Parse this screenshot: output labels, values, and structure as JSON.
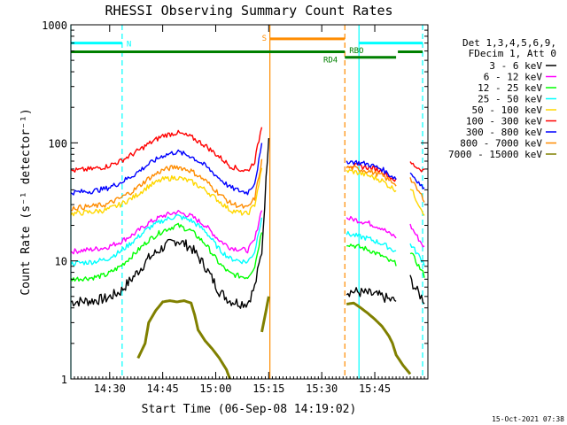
{
  "chart_data": {
    "type": "line",
    "title": "RHESSI Observing Summary Count Rates",
    "xlabel": "Start Time (06-Sep-08 14:19:02)",
    "ylabel": "Count Rate (s⁻¹ detector⁻¹)",
    "y_scale": "log",
    "ylim": [
      1,
      1000
    ],
    "xlim_minutes_after_start": [
      0,
      101
    ],
    "x_ticks": [
      {
        "label": "14:30",
        "minutes": 10.97
      },
      {
        "label": "14:45",
        "minutes": 25.97
      },
      {
        "label": "15:00",
        "minutes": 40.97
      },
      {
        "label": "15:15",
        "minutes": 55.97
      },
      {
        "label": "15:30",
        "minutes": 70.97
      },
      {
        "label": "15:45",
        "minutes": 85.97
      }
    ],
    "y_ticks": [
      {
        "label": "1",
        "value": 1
      },
      {
        "label": "10",
        "value": 10
      },
      {
        "label": "100",
        "value": 100
      },
      {
        "label": "1000",
        "value": 1000
      }
    ],
    "legend": {
      "position": "right",
      "header": [
        "Det 1,3,4,5,6,9,",
        "FDecim 1, Att 0"
      ]
    },
    "series": [
      {
        "name": "3 - 6 keV",
        "color": "#000000",
        "x": [
          0,
          6,
          10,
          14,
          18,
          22,
          26,
          30,
          34,
          38,
          42,
          45,
          48,
          50,
          52,
          54,
          56,
          64,
          72,
          76,
          78,
          80,
          84,
          88,
          90,
          92,
          94,
          96,
          98,
          100
        ],
        "y": [
          4.5,
          4.6,
          4.8,
          5.5,
          7.5,
          10.5,
          13,
          15,
          13,
          9,
          5.5,
          4.6,
          4.4,
          4.4,
          6,
          12,
          120,
          null,
          null,
          null,
          5.5,
          5.5,
          5.3,
          5,
          4.7,
          4.6,
          null,
          7,
          5.5,
          4.6
        ]
      },
      {
        "name": "6 - 12 keV",
        "color": "#ff00ff",
        "x": [
          0,
          6,
          10,
          14,
          18,
          22,
          26,
          30,
          34,
          38,
          42,
          45,
          48,
          50,
          52,
          54,
          56,
          64,
          72,
          76,
          78,
          80,
          84,
          88,
          90,
          92,
          94,
          96,
          98,
          100
        ],
        "y": [
          12,
          12.5,
          13,
          14.5,
          17,
          21,
          24,
          26,
          24,
          20,
          15,
          13,
          12.5,
          12.3,
          15,
          28,
          null,
          null,
          null,
          null,
          23,
          22.5,
          21,
          19,
          17,
          16,
          null,
          20,
          16,
          13
        ]
      },
      {
        "name": "12 - 25 keV",
        "color": "#00ff00",
        "x": [
          0,
          6,
          10,
          14,
          18,
          22,
          26,
          30,
          34,
          38,
          42,
          45,
          48,
          50,
          52,
          54,
          56,
          64,
          72,
          76,
          78,
          80,
          84,
          88,
          90,
          92,
          94,
          96,
          98,
          100
        ],
        "y": [
          7,
          7.2,
          7.6,
          9,
          11.5,
          15,
          18,
          20,
          18,
          14,
          9.5,
          7.8,
          7.4,
          7.3,
          9,
          18,
          null,
          null,
          null,
          null,
          14,
          13.5,
          12.5,
          11,
          10,
          9.5,
          null,
          12,
          9.5,
          7.5
        ]
      },
      {
        "name": "25 - 50 keV",
        "color": "#00ffff",
        "x": [
          0,
          6,
          10,
          14,
          18,
          22,
          26,
          30,
          34,
          38,
          42,
          45,
          48,
          50,
          52,
          54,
          56,
          64,
          72,
          76,
          78,
          80,
          84,
          88,
          90,
          92,
          94,
          96,
          98,
          100
        ],
        "y": [
          9.5,
          9.8,
          10.3,
          12,
          15,
          19,
          22,
          24,
          22,
          18,
          12.5,
          10.5,
          10,
          9.8,
          12,
          24,
          null,
          null,
          null,
          null,
          17,
          16.5,
          15.5,
          14,
          13,
          12,
          null,
          14,
          11.5,
          9.5
        ]
      },
      {
        "name": "50 - 100 keV",
        "color": "#ffd700",
        "x": [
          0,
          6,
          10,
          14,
          18,
          22,
          26,
          30,
          34,
          38,
          42,
          45,
          48,
          50,
          52,
          54,
          56,
          64,
          72,
          76,
          78,
          80,
          84,
          88,
          90,
          92,
          94,
          96,
          98,
          100
        ],
        "y": [
          25,
          26,
          27,
          30,
          35,
          43,
          49,
          51,
          47,
          40,
          32,
          27,
          25.5,
          25,
          30,
          60,
          null,
          null,
          null,
          null,
          58,
          57,
          53,
          48,
          43,
          40,
          null,
          42,
          32,
          25
        ]
      },
      {
        "name": "100 - 300 keV",
        "color": "#ff0000",
        "x": [
          0,
          6,
          10,
          14,
          18,
          22,
          26,
          30,
          34,
          38,
          42,
          45,
          48,
          50,
          52,
          54,
          56,
          64,
          72,
          76,
          78,
          80,
          84,
          88,
          90,
          92,
          94,
          96,
          98,
          100
        ],
        "y": [
          58,
          60,
          63,
          70,
          82,
          98,
          115,
          122,
          112,
          95,
          76,
          64,
          59,
          58,
          70,
          140,
          null,
          null,
          null,
          null,
          65,
          64,
          62,
          58,
          52,
          48,
          null,
          68,
          62,
          58
        ]
      },
      {
        "name": "300 - 800 keV",
        "color": "#0000ff",
        "x": [
          0,
          6,
          10,
          14,
          18,
          22,
          26,
          30,
          34,
          38,
          42,
          45,
          48,
          50,
          52,
          54,
          56,
          64,
          72,
          76,
          78,
          80,
          84,
          88,
          90,
          92,
          94,
          96,
          98,
          100
        ],
        "y": [
          38,
          39,
          41,
          46,
          54,
          66,
          78,
          84,
          77,
          64,
          50,
          42,
          39,
          38,
          46,
          95,
          null,
          null,
          null,
          null,
          70,
          69,
          66,
          60,
          54,
          50,
          null,
          56,
          48,
          40
        ]
      },
      {
        "name": "800 - 7000 keV",
        "color": "#ff8c00",
        "x": [
          0,
          6,
          10,
          14,
          18,
          22,
          26,
          30,
          34,
          38,
          42,
          45,
          48,
          50,
          52,
          54,
          56,
          64,
          72,
          76,
          78,
          80,
          84,
          88,
          90,
          92,
          94,
          96,
          98,
          100
        ],
        "y": [
          28,
          29,
          30,
          34,
          40,
          50,
          59,
          63,
          58,
          48,
          37,
          31,
          29,
          28,
          34,
          70,
          null,
          null,
          null,
          null,
          62,
          61,
          58,
          53,
          48,
          45,
          null,
          50,
          40,
          33
        ]
      },
      {
        "name": "7000 - 15000 keV",
        "color": "#808000",
        "x": [
          19,
          21,
          22,
          24,
          26,
          28,
          30,
          32,
          34,
          35,
          36,
          38,
          40,
          42,
          44,
          45,
          46,
          48,
          52,
          54,
          56,
          64,
          72,
          76,
          78,
          80,
          82,
          84,
          86,
          88,
          90,
          91,
          92,
          94,
          96,
          98,
          100
        ],
        "y": [
          1.5,
          2,
          3,
          3.8,
          4.5,
          4.6,
          4.5,
          4.6,
          4.4,
          3.5,
          2.6,
          2.1,
          1.8,
          1.5,
          1.2,
          1,
          null,
          null,
          null,
          2.5,
          5,
          null,
          null,
          null,
          4.3,
          4.4,
          4,
          3.6,
          3.2,
          2.8,
          2.3,
          2,
          1.6,
          1.3,
          1.1,
          null,
          null
        ]
      }
    ],
    "annotations": [
      {
        "label": "N",
        "color": "#00ffff",
        "type": "interval",
        "start_minutes": 0,
        "end_minutes": 14.5,
        "y_value": 700
      },
      {
        "label": "S",
        "color": "#ff8c00",
        "type": "interval",
        "start_minutes": 56.3,
        "end_minutes": 77.5,
        "y_value": 760
      },
      {
        "label": "RD4",
        "color": "#008000",
        "type": "interval",
        "start_minutes": 0,
        "end_minutes": 77.5,
        "y_value": 590
      },
      {
        "label": "RBO",
        "color": "#008000",
        "type": "interval",
        "start_minutes": 77.5,
        "end_minutes": 92,
        "y_value": 530
      },
      {
        "label": "",
        "color": "#008000",
        "type": "interval",
        "start_minutes": 92.5,
        "end_minutes": 99.5,
        "y_value": 590
      },
      {
        "label": "",
        "color": "#00ffff",
        "type": "interval",
        "start_minutes": 81.5,
        "end_minutes": 99.5,
        "y_value": 700
      }
    ],
    "vertical_lines": [
      {
        "minutes": 0,
        "color": "#00ffff",
        "style": "solid"
      },
      {
        "minutes": 14.5,
        "color": "#00ffff",
        "style": "dashed"
      },
      {
        "minutes": 56.3,
        "color": "#ff8c00",
        "style": "solid"
      },
      {
        "minutes": 77.5,
        "color": "#ff8c00",
        "style": "dashed"
      },
      {
        "minutes": 81.5,
        "color": "#00ffff",
        "style": "solid"
      },
      {
        "minutes": 99.5,
        "color": "#00ffff",
        "style": "dashed"
      }
    ]
  },
  "footer_date": "15-Oct-2021 07:38"
}
